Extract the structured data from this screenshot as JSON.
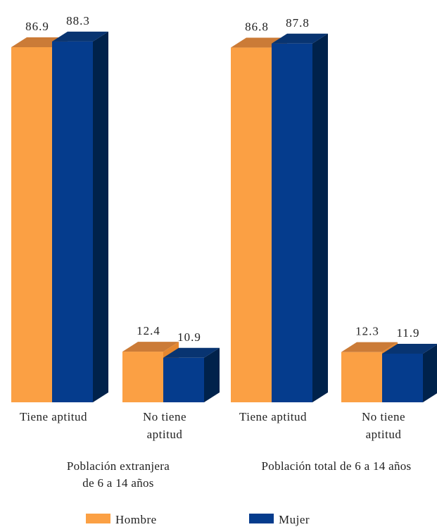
{
  "chart_data": {
    "type": "bar",
    "style": "3d-clustered-columns",
    "ylim": [
      0,
      100
    ],
    "grid": false,
    "legend_position": "bottom",
    "colors": {
      "Hombre": {
        "front": "#fba044",
        "top": "#cb7b37",
        "side": "#e5872f"
      },
      "Mujer": {
        "front": "#053c8d",
        "top": "#083471",
        "side": "#00224b"
      }
    },
    "series": [
      {
        "name": "Hombre"
      },
      {
        "name": "Mujer"
      }
    ],
    "groups": [
      {
        "label_lines": [
          "Población extranjera",
          "de 6 a 14 años"
        ],
        "categories": [
          {
            "label_lines": [
              "Tiene aptitud"
            ],
            "values": [
              86.9,
              88.3
            ],
            "value_labels": [
              "86.9",
              "88.3"
            ]
          },
          {
            "label_lines": [
              "No tiene",
              "aptitud"
            ],
            "values": [
              12.4,
              10.9
            ],
            "value_labels": [
              "12.4",
              "10.9"
            ]
          }
        ]
      },
      {
        "label_lines": [
          "Población total de 6 a 14 años"
        ],
        "categories": [
          {
            "label_lines": [
              "Tiene aptitud"
            ],
            "values": [
              86.8,
              87.8
            ],
            "value_labels": [
              "86.8",
              "87.8"
            ]
          },
          {
            "label_lines": [
              "No tiene",
              "aptitud"
            ],
            "values": [
              12.3,
              11.9
            ],
            "value_labels": [
              "12.3",
              "11.9"
            ]
          }
        ]
      }
    ]
  }
}
